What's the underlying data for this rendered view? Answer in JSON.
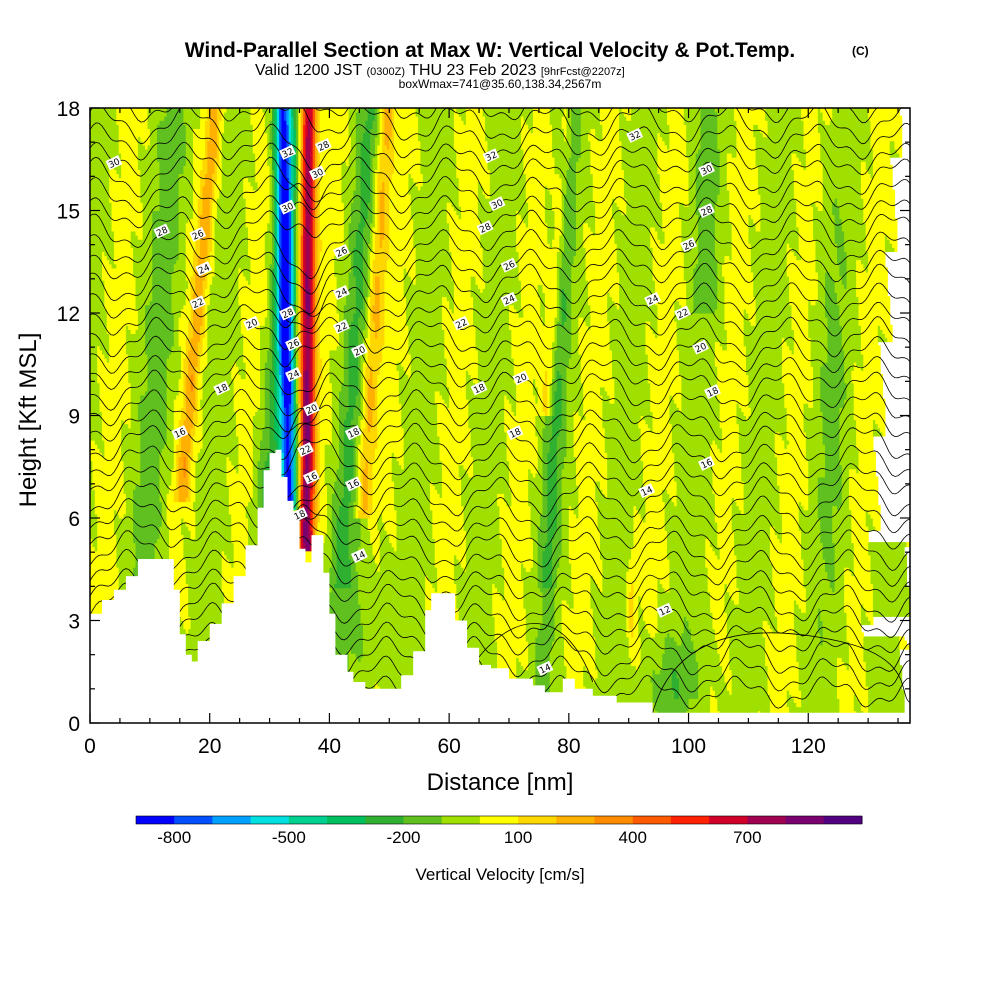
{
  "chart_data": {
    "type": "heatmap",
    "title": "Wind-Parallel Section at Max W: Vertical Velocity & Pot.Temp.",
    "title_mark": "(C)",
    "subtitle_pre": "Valid 1200 JST",
    "subtitle_utc": "(0300Z)",
    "subtitle_date": "THU 23 Feb 2023",
    "subtitle_fcst": "[9hrFcst@2207z]",
    "subtitle2": "boxWmax=741@35.60,138.34,2567m",
    "xlabel": "Distance [nm]",
    "ylabel": "Height [Kft MSL]",
    "xlim": [
      0,
      137
    ],
    "ylim": [
      0,
      18
    ],
    "x_ticks": [
      "0",
      "20",
      "40",
      "60",
      "80",
      "100",
      "120"
    ],
    "y_ticks": [
      "0",
      "3",
      "6",
      "9",
      "12",
      "15",
      "18"
    ],
    "colorbar": {
      "label": "Vertical Velocity [cm/s]",
      "tick_labels": [
        "-800",
        "-500",
        "-200",
        "100",
        "400",
        "700"
      ],
      "colors": [
        "#0000ff",
        "#0050ff",
        "#00a0ff",
        "#00e0e0",
        "#00d090",
        "#00c060",
        "#30b030",
        "#60c020",
        "#a0e000",
        "#ffff00",
        "#ffd700",
        "#ffb000",
        "#ff8c00",
        "#ff5a00",
        "#ff2000",
        "#d00028",
        "#a00050",
        "#7a0070",
        "#500080"
      ]
    },
    "terrain": [
      [
        0,
        3.2
      ],
      [
        2,
        3.6
      ],
      [
        4,
        3.9
      ],
      [
        6,
        4.3
      ],
      [
        8,
        4.8
      ],
      [
        13,
        4.8
      ],
      [
        14,
        3.9
      ],
      [
        15,
        2.6
      ],
      [
        16,
        2.0
      ],
      [
        17,
        1.8
      ],
      [
        18,
        2.4
      ],
      [
        20,
        2.9
      ],
      [
        22,
        3.5
      ],
      [
        24,
        4.3
      ],
      [
        26,
        5.2
      ],
      [
        28,
        6.3
      ],
      [
        29,
        7.4
      ],
      [
        30,
        7.9
      ],
      [
        31,
        8.0
      ],
      [
        32,
        7.2
      ],
      [
        33,
        6.5
      ],
      [
        34,
        6.0
      ],
      [
        35,
        5.1
      ],
      [
        36,
        4.7
      ],
      [
        37,
        5.5
      ],
      [
        39,
        4.4
      ],
      [
        40,
        3.2
      ],
      [
        41,
        2.0
      ],
      [
        43,
        1.5
      ],
      [
        44,
        1.2
      ],
      [
        46,
        1.0
      ],
      [
        50,
        1.0
      ],
      [
        52,
        1.4
      ],
      [
        54,
        2.1
      ],
      [
        56,
        3.3
      ],
      [
        57,
        3.8
      ],
      [
        59,
        3.8
      ],
      [
        61,
        3.0
      ],
      [
        63,
        2.2
      ],
      [
        65,
        1.7
      ],
      [
        67,
        1.6
      ],
      [
        70,
        1.3
      ],
      [
        74,
        1.1
      ],
      [
        76,
        0.9
      ],
      [
        79,
        1.3
      ],
      [
        81,
        1.0
      ],
      [
        84,
        0.8
      ],
      [
        88,
        0.6
      ],
      [
        92,
        0.6
      ],
      [
        94,
        0.3
      ],
      [
        137,
        0.3
      ]
    ],
    "updraft_core": {
      "x": [
        36,
        39
      ],
      "max_w": 741
    },
    "downdraft_core": {
      "x": [
        32,
        35
      ]
    },
    "theta_labels": [
      {
        "x": 4,
        "y": 16.4,
        "t": "30"
      },
      {
        "x": 12,
        "y": 14.4,
        "t": "28"
      },
      {
        "x": 18,
        "y": 14.3,
        "t": "26"
      },
      {
        "x": 19,
        "y": 13.3,
        "t": "24"
      },
      {
        "x": 18,
        "y": 12.3,
        "t": "22"
      },
      {
        "x": 27,
        "y": 11.7,
        "t": "20"
      },
      {
        "x": 22,
        "y": 9.8,
        "t": "18"
      },
      {
        "x": 15,
        "y": 8.5,
        "t": "16"
      },
      {
        "x": 33,
        "y": 16.7,
        "t": "32"
      },
      {
        "x": 33,
        "y": 15.1,
        "t": "30"
      },
      {
        "x": 38,
        "y": 16.1,
        "t": "30"
      },
      {
        "x": 39,
        "y": 16.9,
        "t": "28"
      },
      {
        "x": 42,
        "y": 13.8,
        "t": "26"
      },
      {
        "x": 42,
        "y": 12.6,
        "t": "24"
      },
      {
        "x": 42,
        "y": 11.6,
        "t": "22"
      },
      {
        "x": 45,
        "y": 10.9,
        "t": "20"
      },
      {
        "x": 33,
        "y": 12.0,
        "t": "28"
      },
      {
        "x": 34,
        "y": 11.1,
        "t": "26"
      },
      {
        "x": 34,
        "y": 10.2,
        "t": "24"
      },
      {
        "x": 37,
        "y": 9.2,
        "t": "20"
      },
      {
        "x": 36,
        "y": 8.0,
        "t": "22"
      },
      {
        "x": 37,
        "y": 7.2,
        "t": "16"
      },
      {
        "x": 35,
        "y": 6.1,
        "t": "18"
      },
      {
        "x": 44,
        "y": 8.5,
        "t": "18"
      },
      {
        "x": 44,
        "y": 7.0,
        "t": "16"
      },
      {
        "x": 45,
        "y": 4.9,
        "t": "14"
      },
      {
        "x": 67,
        "y": 16.6,
        "t": "32"
      },
      {
        "x": 68,
        "y": 15.2,
        "t": "30"
      },
      {
        "x": 66,
        "y": 14.5,
        "t": "28"
      },
      {
        "x": 70,
        "y": 13.4,
        "t": "26"
      },
      {
        "x": 70,
        "y": 12.4,
        "t": "24"
      },
      {
        "x": 62,
        "y": 11.7,
        "t": "22"
      },
      {
        "x": 72,
        "y": 10.1,
        "t": "20"
      },
      {
        "x": 65,
        "y": 9.8,
        "t": "18"
      },
      {
        "x": 71,
        "y": 8.5,
        "t": "18"
      },
      {
        "x": 91,
        "y": 17.2,
        "t": "32"
      },
      {
        "x": 103,
        "y": 16.2,
        "t": "30"
      },
      {
        "x": 103,
        "y": 15.0,
        "t": "28"
      },
      {
        "x": 100,
        "y": 14.0,
        "t": "26"
      },
      {
        "x": 94,
        "y": 12.4,
        "t": "24"
      },
      {
        "x": 99,
        "y": 12.0,
        "t": "22"
      },
      {
        "x": 102,
        "y": 11.0,
        "t": "20"
      },
      {
        "x": 104,
        "y": 9.7,
        "t": "18"
      },
      {
        "x": 103,
        "y": 7.6,
        "t": "16"
      },
      {
        "x": 93,
        "y": 6.8,
        "t": "14"
      },
      {
        "x": 96,
        "y": 3.3,
        "t": "12"
      },
      {
        "x": 76,
        "y": 1.6,
        "t": "14"
      }
    ]
  }
}
